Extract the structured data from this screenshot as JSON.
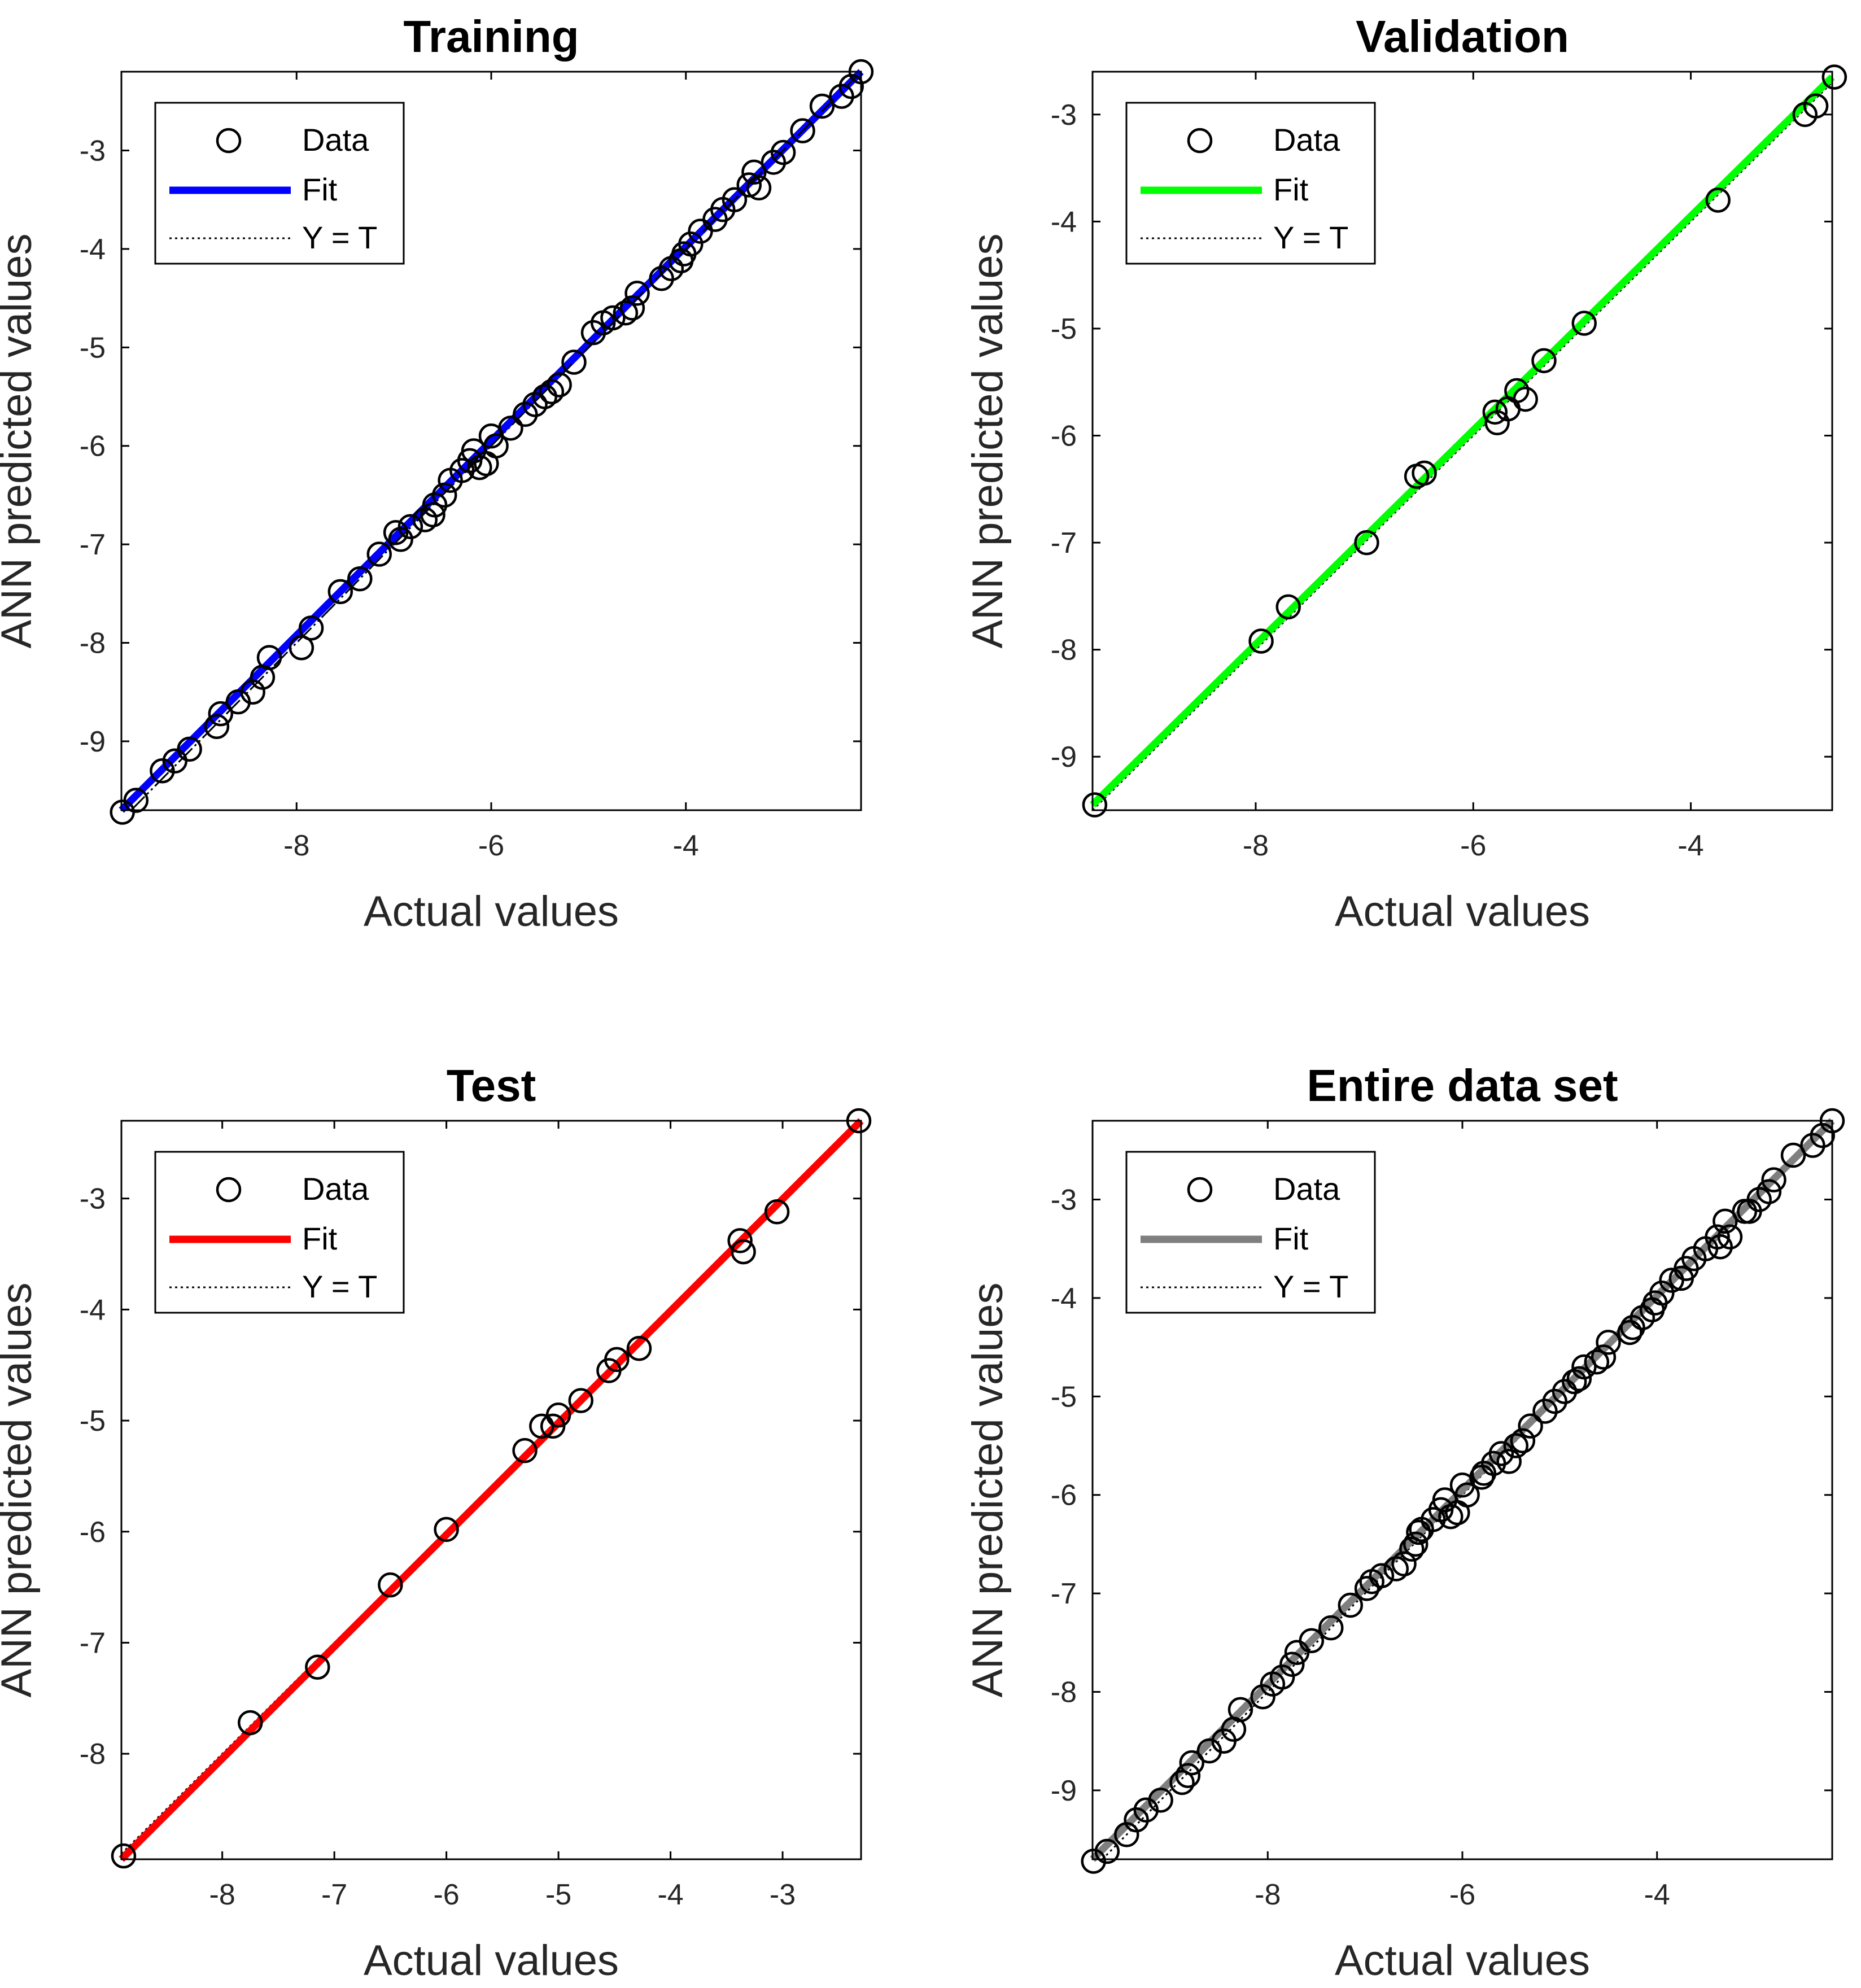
{
  "chart_data": [
    {
      "type": "scatter",
      "title": "Training",
      "xlabel": "Actual values",
      "ylabel": "ANN predicted values",
      "xlim": [
        -9.8,
        -2.2
      ],
      "ylim": [
        -9.7,
        -2.2
      ],
      "xticks": [
        -8,
        -6,
        -4
      ],
      "xtick_labels": [
        "-8",
        "-6",
        "-4"
      ],
      "yticks": [
        -9,
        -8,
        -7,
        -6,
        -5,
        -4,
        -3
      ],
      "ytick_labels": [
        "-9",
        "-8",
        "-7",
        "-6",
        "-5",
        "-4",
        "-3"
      ],
      "fit_color": "#0000ff",
      "fit_line": [
        [
          -9.8,
          -9.7
        ],
        [
          -2.2,
          -2.2
        ]
      ],
      "legend": {
        "placement": "top-left",
        "entries": [
          "Data",
          "Fit",
          "Y = T"
        ]
      },
      "x": [
        -9.79,
        -9.65,
        -9.38,
        -9.25,
        -9.1,
        -8.82,
        -8.78,
        -8.6,
        -8.45,
        -8.35,
        -8.28,
        -7.95,
        -7.85,
        -7.55,
        -7.35,
        -7.15,
        -6.98,
        -6.93,
        -6.83,
        -6.68,
        -6.6,
        -6.58,
        -6.48,
        -6.42,
        -6.3,
        -6.22,
        -6.18,
        -6.12,
        -6.05,
        -6.0,
        -5.95,
        -5.8,
        -5.65,
        -5.55,
        -5.45,
        -5.38,
        -5.3,
        -5.15,
        -4.95,
        -4.85,
        -4.75,
        -4.62,
        -4.55,
        -4.5,
        -4.25,
        -4.15,
        -4.05,
        -4.02,
        -3.95,
        -3.85,
        -3.7,
        -3.62,
        -3.5,
        -3.35,
        -3.3,
        -3.25,
        -3.1,
        -3.0,
        -2.8,
        -2.6,
        -2.4,
        -2.3,
        -2.2
      ],
      "y": [
        -9.72,
        -9.6,
        -9.3,
        -9.2,
        -9.08,
        -8.85,
        -8.72,
        -8.6,
        -8.5,
        -8.35,
        -8.15,
        -8.05,
        -7.85,
        -7.48,
        -7.35,
        -7.1,
        -6.88,
        -6.95,
        -6.82,
        -6.75,
        -6.7,
        -6.6,
        -6.5,
        -6.35,
        -6.25,
        -6.15,
        -6.05,
        -6.22,
        -6.18,
        -5.9,
        -6.0,
        -5.82,
        -5.68,
        -5.58,
        -5.5,
        -5.45,
        -5.38,
        -5.15,
        -4.85,
        -4.75,
        -4.7,
        -4.65,
        -4.6,
        -4.45,
        -4.3,
        -4.2,
        -4.12,
        -4.05,
        -3.95,
        -3.82,
        -3.7,
        -3.6,
        -3.5,
        -3.35,
        -3.22,
        -3.38,
        -3.12,
        -3.02,
        -2.8,
        -2.55,
        -2.45,
        -2.35,
        -2.2
      ]
    },
    {
      "type": "scatter",
      "title": "Validation",
      "xlabel": "Actual values",
      "ylabel": "ANN predicted values",
      "xlim": [
        -9.5,
        -2.7
      ],
      "ylim": [
        -9.5,
        -2.6
      ],
      "xticks": [
        -8,
        -6,
        -4
      ],
      "xtick_labels": [
        "-8",
        "-6",
        "-4"
      ],
      "yticks": [
        -9,
        -8,
        -7,
        -6,
        -5,
        -4,
        -3
      ],
      "ytick_labels": [
        "-9",
        "-8",
        "-7",
        "-6",
        "-5",
        "-4",
        "-3"
      ],
      "fit_color": "#00ff00",
      "fit_line": [
        [
          -9.5,
          -9.45
        ],
        [
          -2.7,
          -2.65
        ]
      ],
      "legend": {
        "placement": "top-left",
        "entries": [
          "Data",
          "Fit",
          "Y = T"
        ]
      },
      "x": [
        -9.48,
        -7.95,
        -7.7,
        -6.98,
        -6.52,
        -6.45,
        -5.8,
        -5.78,
        -5.68,
        -5.6,
        -5.52,
        -5.35,
        -4.98,
        -3.75,
        -2.95,
        -2.85,
        -2.68
      ],
      "y": [
        -9.45,
        -7.92,
        -7.6,
        -7.0,
        -6.38,
        -6.35,
        -5.78,
        -5.88,
        -5.75,
        -5.58,
        -5.66,
        -5.3,
        -4.95,
        -3.8,
        -3.0,
        -2.92,
        -2.65
      ]
    },
    {
      "type": "scatter",
      "title": "Test",
      "xlabel": "Actual values",
      "ylabel": "ANN predicted values",
      "xlim": [
        -8.9,
        -2.3
      ],
      "ylim": [
        -8.95,
        -2.3
      ],
      "xticks": [
        -8,
        -7,
        -6,
        -5,
        -4,
        -3
      ],
      "xtick_labels": [
        "-8",
        "-7",
        "-6",
        "-5",
        "-4",
        "-3"
      ],
      "yticks": [
        -8,
        -7,
        -6,
        -5,
        -4,
        -3
      ],
      "ytick_labels": [
        "-8",
        "-7",
        "-6",
        "-5",
        "-4",
        "-3"
      ],
      "fit_color": "#ff0000",
      "fit_line": [
        [
          -8.9,
          -8.95
        ],
        [
          -2.3,
          -2.3
        ]
      ],
      "legend": {
        "placement": "top-left",
        "entries": [
          "Data",
          "Fit",
          "Y = T"
        ]
      },
      "x": [
        -8.88,
        -7.75,
        -7.15,
        -6.5,
        -6.0,
        -5.3,
        -5.15,
        -5.05,
        -5.0,
        -4.8,
        -4.55,
        -4.48,
        -4.28,
        -3.38,
        -3.35,
        -3.05,
        -2.32
      ],
      "y": [
        -8.92,
        -7.72,
        -7.22,
        -6.48,
        -5.98,
        -5.27,
        -5.05,
        -5.05,
        -4.95,
        -4.82,
        -4.55,
        -4.45,
        -4.35,
        -3.38,
        -3.48,
        -3.12,
        -2.3
      ]
    },
    {
      "type": "scatter",
      "title": "Entire data set",
      "xlabel": "Actual values",
      "ylabel": "ANN predicted values",
      "xlim": [
        -9.8,
        -2.2
      ],
      "ylim": [
        -9.7,
        -2.2
      ],
      "xticks": [
        -8,
        -6,
        -4
      ],
      "xtick_labels": [
        "-8",
        "-6",
        "-4"
      ],
      "yticks": [
        -9,
        -8,
        -7,
        -6,
        -5,
        -4,
        -3
      ],
      "ytick_labels": [
        "-9",
        "-8",
        "-7",
        "-6",
        "-5",
        "-4",
        "-3"
      ],
      "fit_color": "#7f7f7f",
      "fit_line": [
        [
          -9.8,
          -9.7
        ],
        [
          -2.2,
          -2.2
        ]
      ],
      "legend": {
        "placement": "top-left",
        "entries": [
          "Data",
          "Fit",
          "Y = T"
        ]
      },
      "x": [
        -9.79,
        -9.65,
        -9.45,
        -9.35,
        -9.25,
        -9.1,
        -8.88,
        -8.82,
        -8.78,
        -8.6,
        -8.45,
        -8.35,
        -8.28,
        -8.05,
        -7.95,
        -7.85,
        -7.75,
        -7.7,
        -7.55,
        -7.35,
        -7.15,
        -6.98,
        -6.93,
        -6.83,
        -6.68,
        -6.6,
        -6.52,
        -6.48,
        -6.45,
        -6.42,
        -6.3,
        -6.22,
        -6.18,
        -6.12,
        -6.05,
        -6.0,
        -5.95,
        -5.8,
        -5.78,
        -5.68,
        -5.6,
        -5.52,
        -5.45,
        -5.38,
        -5.3,
        -5.15,
        -5.05,
        -4.95,
        -4.85,
        -4.8,
        -4.75,
        -4.62,
        -4.55,
        -4.5,
        -4.28,
        -4.25,
        -4.15,
        -4.05,
        -4.02,
        -3.95,
        -3.85,
        -3.75,
        -3.7,
        -3.62,
        -3.5,
        -3.38,
        -3.35,
        -3.3,
        -3.25,
        -3.1,
        -3.05,
        -2.95,
        -2.85,
        -2.8,
        -2.6,
        -2.4,
        -2.3,
        -2.2
      ],
      "y": [
        -9.72,
        -9.62,
        -9.45,
        -9.3,
        -9.2,
        -9.1,
        -8.92,
        -8.85,
        -8.72,
        -8.6,
        -8.5,
        -8.38,
        -8.18,
        -8.05,
        -7.92,
        -7.85,
        -7.72,
        -7.6,
        -7.48,
        -7.35,
        -7.12,
        -6.95,
        -6.88,
        -6.82,
        -6.75,
        -6.7,
        -6.55,
        -6.5,
        -6.38,
        -6.35,
        -6.25,
        -6.15,
        -6.05,
        -6.22,
        -6.18,
        -5.9,
        -6.0,
        -5.82,
        -5.78,
        -5.68,
        -5.58,
        -5.66,
        -5.5,
        -5.45,
        -5.3,
        -5.15,
        -5.05,
        -4.95,
        -4.85,
        -4.82,
        -4.7,
        -4.65,
        -4.6,
        -4.45,
        -4.35,
        -4.3,
        -4.2,
        -4.12,
        -4.05,
        -3.95,
        -3.82,
        -3.8,
        -3.7,
        -3.6,
        -3.5,
        -3.38,
        -3.48,
        -3.22,
        -3.38,
        -3.12,
        -3.12,
        -3.0,
        -2.92,
        -2.8,
        -2.55,
        -2.45,
        -2.35,
        -2.2
      ]
    }
  ]
}
